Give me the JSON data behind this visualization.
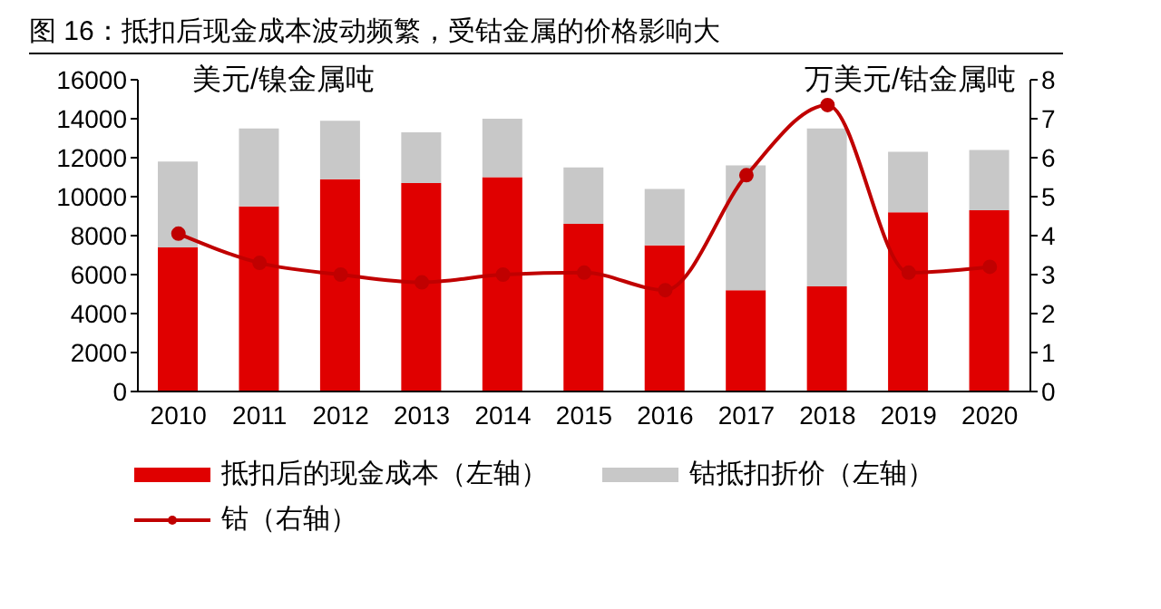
{
  "chart_data": {
    "type": "bar",
    "title": "图 16：抵扣后现金成本波动频繁，受钴金属的价格影响大",
    "ylabel": "美元/镍金属吨",
    "y2label": "万美元/钴金属吨",
    "categories": [
      "2010",
      "2011",
      "2012",
      "2013",
      "2014",
      "2015",
      "2016",
      "2017",
      "2018",
      "2019",
      "2020"
    ],
    "stacked": true,
    "series": [
      {
        "name": "抵扣后的现金成本（左轴）",
        "color": "#e00000",
        "values": [
          7400,
          9500,
          10900,
          10700,
          11000,
          8600,
          7500,
          5200,
          5400,
          9200,
          9300
        ]
      },
      {
        "name": "钴抵扣折价（左轴）",
        "color": "#c8c8c8",
        "values": [
          4400,
          4000,
          3000,
          2600,
          3000,
          2900,
          2900,
          6400,
          8100,
          3100,
          3100
        ]
      },
      {
        "name": "钴（右轴）",
        "type": "line",
        "axis": "y2",
        "color": "#c00000",
        "marker": "circle",
        "values": [
          4.05,
          3.3,
          3.0,
          2.8,
          3.0,
          3.05,
          2.6,
          5.55,
          7.35,
          3.05,
          3.2
        ]
      }
    ],
    "ylim": [
      0,
      16000
    ],
    "yticks": [
      0,
      2000,
      4000,
      6000,
      8000,
      10000,
      12000,
      14000,
      16000
    ],
    "y2lim": [
      0,
      8
    ],
    "y2ticks": [
      0,
      1,
      2,
      3,
      4,
      5,
      6,
      7,
      8
    ],
    "grid": false,
    "legend": "bottom"
  }
}
